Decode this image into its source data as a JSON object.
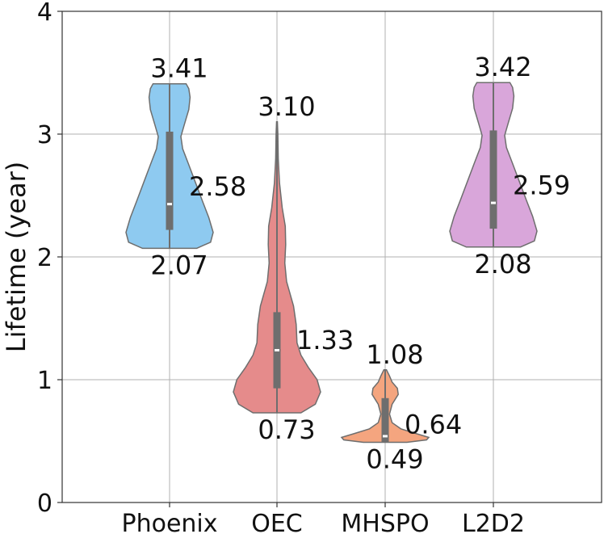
{
  "chart_data": {
    "type": "violin",
    "title": "",
    "xlabel": "",
    "ylabel": "Lifetime (year)",
    "ylim": [
      0,
      4
    ],
    "yticks": [
      0,
      1,
      2,
      3,
      4
    ],
    "grid": true,
    "categories": [
      "Phoenix",
      "OEC",
      "MHSPO",
      "L2D2"
    ],
    "series": [
      {
        "name": "Phoenix",
        "color": "#8ecaf0",
        "min": 2.07,
        "q1": 2.22,
        "median": 2.43,
        "q3": 3.02,
        "max": 3.41,
        "labels": {
          "max": "3.41",
          "mean": "2.58",
          "min": "2.07"
        },
        "density": [
          [
            2.07,
            0.62
          ],
          [
            2.12,
            0.94
          ],
          [
            2.2,
            1.0
          ],
          [
            2.32,
            0.9
          ],
          [
            2.45,
            0.76
          ],
          [
            2.6,
            0.6
          ],
          [
            2.75,
            0.44
          ],
          [
            2.88,
            0.3
          ],
          [
            2.98,
            0.26
          ],
          [
            3.08,
            0.34
          ],
          [
            3.2,
            0.44
          ],
          [
            3.3,
            0.47
          ],
          [
            3.37,
            0.44
          ],
          [
            3.41,
            0.38
          ]
        ]
      },
      {
        "name": "OEC",
        "color": "#e58b8b",
        "min": 0.73,
        "q1": 0.93,
        "median": 1.24,
        "q3": 1.55,
        "max": 3.1,
        "labels": {
          "max": "3.10",
          "mean": "1.33",
          "min": "0.73"
        },
        "density": [
          [
            0.73,
            0.55
          ],
          [
            0.8,
            0.88
          ],
          [
            0.9,
            1.0
          ],
          [
            1.0,
            0.92
          ],
          [
            1.1,
            0.72
          ],
          [
            1.2,
            0.55
          ],
          [
            1.3,
            0.46
          ],
          [
            1.45,
            0.44
          ],
          [
            1.6,
            0.38
          ],
          [
            1.8,
            0.22
          ],
          [
            1.95,
            0.18
          ],
          [
            2.1,
            0.2
          ],
          [
            2.25,
            0.19
          ],
          [
            2.4,
            0.12
          ],
          [
            2.6,
            0.06
          ],
          [
            2.8,
            0.03
          ],
          [
            3.0,
            0.02
          ],
          [
            3.1,
            0.01
          ]
        ]
      },
      {
        "name": "MHSPO",
        "color": "#f4a57f",
        "min": 0.49,
        "q1": 0.49,
        "median": 0.54,
        "q3": 0.85,
        "max": 1.08,
        "labels": {
          "max": "1.08",
          "mean": "0.64",
          "min": "0.49"
        },
        "density": [
          [
            0.49,
            0.5
          ],
          [
            0.51,
            0.95
          ],
          [
            0.53,
            1.0
          ],
          [
            0.56,
            0.72
          ],
          [
            0.6,
            0.36
          ],
          [
            0.65,
            0.16
          ],
          [
            0.72,
            0.1
          ],
          [
            0.8,
            0.16
          ],
          [
            0.88,
            0.3
          ],
          [
            0.93,
            0.28
          ],
          [
            0.98,
            0.16
          ],
          [
            1.03,
            0.1
          ],
          [
            1.08,
            0.03
          ]
        ]
      },
      {
        "name": "L2D2",
        "color": "#d9a6da",
        "min": 2.08,
        "q1": 2.23,
        "median": 2.44,
        "q3": 3.03,
        "max": 3.42,
        "labels": {
          "max": "3.42",
          "mean": "2.59",
          "min": "2.08"
        },
        "density": [
          [
            2.08,
            0.62
          ],
          [
            2.13,
            0.94
          ],
          [
            2.21,
            1.0
          ],
          [
            2.33,
            0.9
          ],
          [
            2.46,
            0.76
          ],
          [
            2.61,
            0.6
          ],
          [
            2.76,
            0.44
          ],
          [
            2.89,
            0.3
          ],
          [
            2.99,
            0.26
          ],
          [
            3.09,
            0.34
          ],
          [
            3.21,
            0.44
          ],
          [
            3.31,
            0.47
          ],
          [
            3.38,
            0.44
          ],
          [
            3.42,
            0.38
          ]
        ]
      }
    ]
  }
}
